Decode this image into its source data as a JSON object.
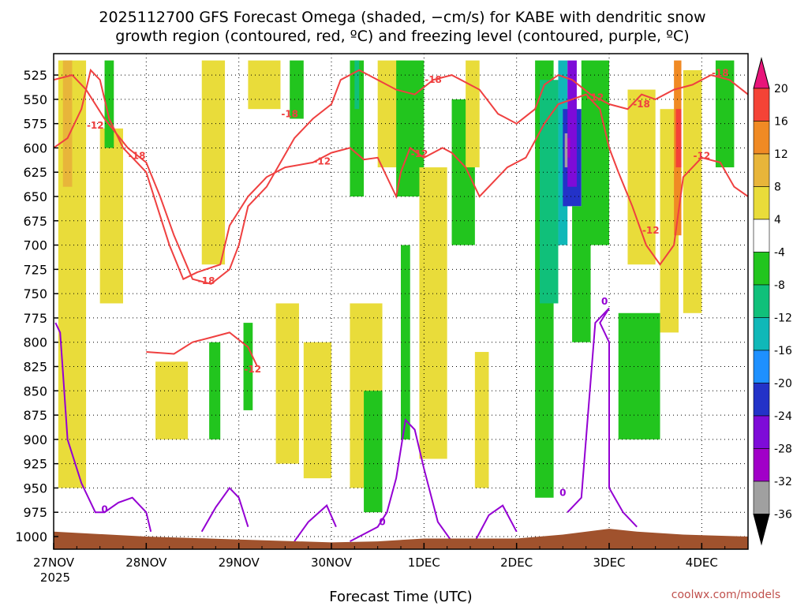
{
  "chart_data": {
    "type": "time-height cross section",
    "title_line1": "2025112700 GFS Forecast Omega (shaded, −cm/s) for KABE with dendritic snow",
    "title_line2": "growth region (contoured, red, ºC) and freezing level (contoured, purple, ºC)",
    "xlabel": "Forecast Time (UTC)",
    "credit": "coolwx.com/models",
    "x_ticks": [
      {
        "label": "27NOV",
        "day": 0
      },
      {
        "label": "28NOV",
        "day": 1
      },
      {
        "label": "29NOV",
        "day": 2
      },
      {
        "label": "30NOV",
        "day": 3
      },
      {
        "label": "1DEC",
        "day": 4
      },
      {
        "label": "2DEC",
        "day": 5
      },
      {
        "label": "3DEC",
        "day": 6
      },
      {
        "label": "4DEC",
        "day": 7
      }
    ],
    "x_year_label": "2025",
    "xlim_days": [
      0,
      7.5
    ],
    "y_ticks": [
      525,
      550,
      575,
      600,
      625,
      650,
      675,
      700,
      725,
      750,
      775,
      800,
      825,
      850,
      875,
      900,
      925,
      950,
      975,
      1000
    ],
    "ylim_hpa": [
      503,
      1013
    ],
    "colorbar": {
      "levels": [
        20,
        16,
        12,
        8,
        4,
        -4,
        -8,
        -12,
        -16,
        -20,
        -24,
        -28,
        -32,
        -36
      ],
      "colors": {
        "c20": "#e8157a",
        "c16": "#f44336",
        "c12": "#f08a24",
        "c8": "#e8b53a",
        "c4": "#e9dc3a",
        "c_m4": "#ffffff",
        "c_m8": "#22c51e",
        "c_m12": "#10c07a",
        "c_m16": "#10b8b8",
        "c_m20": "#1e90ff",
        "c_m24": "#2332c8",
        "c_m28": "#7e0bd8",
        "c_m32": "#a100c8",
        "c_m36": "#a0a0a0",
        "c_bottom": "#000000"
      }
    },
    "omega_regions": [
      {
        "level": 4,
        "t0": 0.05,
        "t1": 0.35,
        "p0": 510,
        "p1": 950
      },
      {
        "level": 8,
        "t0": 0.1,
        "t1": 0.2,
        "p0": 510,
        "p1": 640
      },
      {
        "level": 4,
        "t0": 0.5,
        "t1": 0.75,
        "p0": 580,
        "p1": 760
      },
      {
        "level": -8,
        "t0": 0.55,
        "t1": 0.65,
        "p0": 510,
        "p1": 600
      },
      {
        "level": 4,
        "t0": 1.1,
        "t1": 1.45,
        "p0": 820,
        "p1": 900
      },
      {
        "level": 4,
        "t0": 1.6,
        "t1": 1.85,
        "p0": 510,
        "p1": 720
      },
      {
        "level": -8,
        "t0": 1.68,
        "t1": 1.8,
        "p0": 800,
        "p1": 900
      },
      {
        "level": 4,
        "t0": 2.1,
        "t1": 2.45,
        "p0": 510,
        "p1": 560
      },
      {
        "level": -8,
        "t0": 2.05,
        "t1": 2.15,
        "p0": 780,
        "p1": 870
      },
      {
        "level": 4,
        "t0": 2.4,
        "t1": 2.65,
        "p0": 760,
        "p1": 925
      },
      {
        "level": 4,
        "t0": 2.7,
        "t1": 3.0,
        "p0": 800,
        "p1": 940
      },
      {
        "level": -8,
        "t0": 2.55,
        "t1": 2.7,
        "p0": 510,
        "p1": 570
      },
      {
        "level": -8,
        "t0": 3.2,
        "t1": 3.35,
        "p0": 510,
        "p1": 650
      },
      {
        "level": 4,
        "t0": 3.2,
        "t1": 3.55,
        "p0": 760,
        "p1": 950
      },
      {
        "level": -8,
        "t0": 3.35,
        "t1": 3.55,
        "p0": 850,
        "p1": 975
      },
      {
        "level": -12,
        "t0": 3.25,
        "t1": 3.3,
        "p0": 510,
        "p1": 560
      },
      {
        "level": 4,
        "t0": 3.5,
        "t1": 3.8,
        "p0": 510,
        "p1": 620
      },
      {
        "level": -8,
        "t0": 3.7,
        "t1": 4.0,
        "p0": 510,
        "p1": 650
      },
      {
        "level": -8,
        "t0": 3.75,
        "t1": 3.85,
        "p0": 700,
        "p1": 900
      },
      {
        "level": 4,
        "t0": 3.95,
        "t1": 4.25,
        "p0": 620,
        "p1": 920
      },
      {
        "level": -8,
        "t0": 4.3,
        "t1": 4.55,
        "p0": 550,
        "p1": 700
      },
      {
        "level": 4,
        "t0": 4.45,
        "t1": 4.6,
        "p0": 510,
        "p1": 620
      },
      {
        "level": 4,
        "t0": 4.55,
        "t1": 4.7,
        "p0": 810,
        "p1": 950
      },
      {
        "level": -8,
        "t0": 5.2,
        "t1": 5.4,
        "p0": 510,
        "p1": 960
      },
      {
        "level": -12,
        "t0": 5.25,
        "t1": 5.45,
        "p0": 530,
        "p1": 760
      },
      {
        "level": -16,
        "t0": 5.45,
        "t1": 5.55,
        "p0": 510,
        "p1": 700
      },
      {
        "level": -24,
        "t0": 5.5,
        "t1": 5.7,
        "p0": 560,
        "p1": 660
      },
      {
        "level": -28,
        "t0": 5.55,
        "t1": 5.65,
        "p0": 510,
        "p1": 640
      },
      {
        "level": -32,
        "t0": 5.52,
        "t1": 5.58,
        "p0": 590,
        "p1": 610
      },
      {
        "level": -36,
        "t0": 5.52,
        "t1": 5.55,
        "p0": 585,
        "p1": 620
      },
      {
        "level": -8,
        "t0": 5.6,
        "t1": 5.8,
        "p0": 660,
        "p1": 800
      },
      {
        "level": -8,
        "t0": 5.7,
        "t1": 6.0,
        "p0": 510,
        "p1": 700
      },
      {
        "level": 4,
        "t0": 6.2,
        "t1": 6.5,
        "p0": 540,
        "p1": 720
      },
      {
        "level": -8,
        "t0": 6.1,
        "t1": 6.55,
        "p0": 770,
        "p1": 900
      },
      {
        "level": 4,
        "t0": 6.55,
        "t1": 6.75,
        "p0": 560,
        "p1": 790
      },
      {
        "level": 12,
        "t0": 6.7,
        "t1": 6.78,
        "p0": 510,
        "p1": 690
      },
      {
        "level": 16,
        "t0": 6.72,
        "t1": 6.78,
        "p0": 560,
        "p1": 620
      },
      {
        "level": 4,
        "t0": 6.8,
        "t1": 7.0,
        "p0": 520,
        "p1": 770
      },
      {
        "level": -8,
        "t0": 7.15,
        "t1": 7.35,
        "p0": 510,
        "p1": 620
      }
    ],
    "dgz_contours": [
      {
        "label": "-12",
        "points": [
          [
            0,
            600
          ],
          [
            0.15,
            590
          ],
          [
            0.3,
            560
          ],
          [
            0.4,
            520
          ],
          [
            0.5,
            530
          ],
          [
            0.6,
            570
          ],
          [
            0.75,
            600
          ],
          [
            1.0,
            625
          ],
          [
            1.25,
            700
          ],
          [
            1.4,
            735
          ],
          [
            1.55,
            728
          ],
          [
            1.8,
            720
          ],
          [
            1.9,
            680
          ],
          [
            2.1,
            650
          ],
          [
            2.3,
            630
          ],
          [
            2.5,
            620
          ],
          [
            2.8,
            615
          ],
          [
            3.0,
            605
          ],
          [
            3.2,
            600
          ],
          [
            3.35,
            612
          ],
          [
            3.5,
            610
          ],
          [
            3.7,
            650
          ],
          [
            3.75,
            625
          ],
          [
            3.85,
            600
          ],
          [
            4.0,
            610
          ],
          [
            4.2,
            600
          ],
          [
            4.3,
            605
          ],
          [
            4.45,
            620
          ],
          [
            4.6,
            650
          ],
          [
            4.7,
            640
          ],
          [
            4.9,
            620
          ],
          [
            5.1,
            610
          ],
          [
            5.3,
            575
          ],
          [
            5.45,
            555
          ],
          [
            5.6,
            550
          ],
          [
            5.75,
            545
          ],
          [
            5.9,
            560
          ],
          [
            6.0,
            600
          ],
          [
            6.1,
            625
          ],
          [
            6.25,
            660
          ],
          [
            6.4,
            700
          ],
          [
            6.55,
            720
          ],
          [
            6.7,
            700
          ],
          [
            6.8,
            630
          ],
          [
            7.0,
            610
          ],
          [
            7.2,
            615
          ],
          [
            7.35,
            640
          ],
          [
            7.5,
            650
          ]
        ]
      },
      {
        "label": "-18",
        "points": [
          [
            0,
            530
          ],
          [
            0.2,
            525
          ],
          [
            0.35,
            540
          ],
          [
            0.55,
            570
          ],
          [
            0.8,
            600
          ],
          [
            1.0,
            615
          ],
          [
            1.15,
            650
          ],
          [
            1.3,
            690
          ],
          [
            1.5,
            735
          ],
          [
            1.7,
            740
          ],
          [
            1.9,
            725
          ],
          [
            2.0,
            700
          ],
          [
            2.1,
            660
          ],
          [
            2.3,
            640
          ],
          [
            2.45,
            615
          ],
          [
            2.6,
            590
          ],
          [
            2.8,
            570
          ],
          [
            3.0,
            555
          ],
          [
            3.1,
            530
          ],
          [
            3.3,
            520
          ],
          [
            3.5,
            530
          ],
          [
            3.7,
            540
          ],
          [
            3.9,
            545
          ],
          [
            4.1,
            530
          ],
          [
            4.3,
            525
          ],
          [
            4.6,
            540
          ],
          [
            4.8,
            565
          ],
          [
            5.0,
            575
          ],
          [
            5.2,
            560
          ],
          [
            5.3,
            535
          ],
          [
            5.45,
            525
          ],
          [
            5.6,
            530
          ],
          [
            5.8,
            545
          ],
          [
            6.0,
            555
          ],
          [
            6.2,
            560
          ],
          [
            6.35,
            545
          ],
          [
            6.5,
            550
          ],
          [
            6.7,
            540
          ],
          [
            6.9,
            535
          ],
          [
            7.1,
            525
          ],
          [
            7.3,
            530
          ],
          [
            7.5,
            545
          ]
        ]
      },
      {
        "label": "-12",
        "points": [
          [
            1.0,
            810
          ],
          [
            1.3,
            812
          ],
          [
            1.5,
            800
          ],
          [
            1.7,
            795
          ],
          [
            1.9,
            790
          ],
          [
            2.1,
            805
          ],
          [
            2.2,
            825
          ]
        ]
      }
    ],
    "dgz_labels": [
      {
        "text": "-12",
        "t": 0.45,
        "p": 577
      },
      {
        "text": "-18",
        "t": 0.9,
        "p": 608
      },
      {
        "text": "-18",
        "t": 1.65,
        "p": 737
      },
      {
        "text": "-18",
        "t": 2.55,
        "p": 565
      },
      {
        "text": "-12",
        "t": 2.9,
        "p": 614
      },
      {
        "text": "-12",
        "t": 2.15,
        "p": 828
      },
      {
        "text": "-12",
        "t": 3.95,
        "p": 606
      },
      {
        "text": "-18",
        "t": 4.1,
        "p": 530
      },
      {
        "text": "-12",
        "t": 5.85,
        "p": 548
      },
      {
        "text": "-18",
        "t": 6.35,
        "p": 555
      },
      {
        "text": "-12",
        "t": 6.45,
        "p": 685
      },
      {
        "text": "-12",
        "t": 7.0,
        "p": 608
      },
      {
        "text": "-18",
        "t": 7.2,
        "p": 523
      }
    ],
    "freezing_contours": [
      {
        "label": "0",
        "points": [
          [
            0.02,
            780
          ],
          [
            0.07,
            790
          ],
          [
            0.1,
            830
          ],
          [
            0.15,
            900
          ],
          [
            0.3,
            945
          ],
          [
            0.45,
            975
          ],
          [
            0.55,
            975
          ],
          [
            0.7,
            965
          ],
          [
            0.85,
            960
          ],
          [
            1.0,
            975
          ],
          [
            1.05,
            995
          ]
        ]
      },
      {
        "label": "0",
        "points": [
          [
            1.6,
            995
          ],
          [
            1.75,
            970
          ],
          [
            1.9,
            950
          ],
          [
            2.0,
            960
          ],
          [
            2.1,
            990
          ]
        ]
      },
      {
        "label": "0",
        "points": [
          [
            2.6,
            1005
          ],
          [
            2.75,
            985
          ],
          [
            2.95,
            968
          ],
          [
            3.05,
            990
          ]
        ]
      },
      {
        "label": "0",
        "points": [
          [
            3.2,
            1005
          ],
          [
            3.5,
            990
          ],
          [
            3.6,
            975
          ],
          [
            3.7,
            940
          ],
          [
            3.8,
            880
          ],
          [
            3.9,
            890
          ],
          [
            4.0,
            930
          ],
          [
            4.15,
            985
          ],
          [
            4.3,
            1005
          ]
        ]
      },
      {
        "label": "0",
        "points": [
          [
            4.55,
            1005
          ],
          [
            4.7,
            978
          ],
          [
            4.85,
            968
          ],
          [
            5.0,
            995
          ]
        ]
      },
      {
        "label": "0",
        "points": [
          [
            5.55,
            975
          ],
          [
            5.7,
            960
          ],
          [
            5.85,
            780
          ],
          [
            6.0,
            765
          ],
          [
            6.0,
            765
          ],
          [
            5.9,
            780
          ],
          [
            6.0,
            800
          ],
          [
            6.0,
            950
          ],
          [
            6.15,
            975
          ],
          [
            6.3,
            990
          ]
        ]
      }
    ],
    "freezing_labels": [
      {
        "text": "0",
        "t": 0.55,
        "p": 972
      },
      {
        "text": "0",
        "t": 3.55,
        "p": 985
      },
      {
        "text": "0",
        "t": 5.5,
        "p": 955
      },
      {
        "text": "0",
        "t": 5.95,
        "p": 758
      }
    ],
    "terrain_color": "#a0522d"
  }
}
